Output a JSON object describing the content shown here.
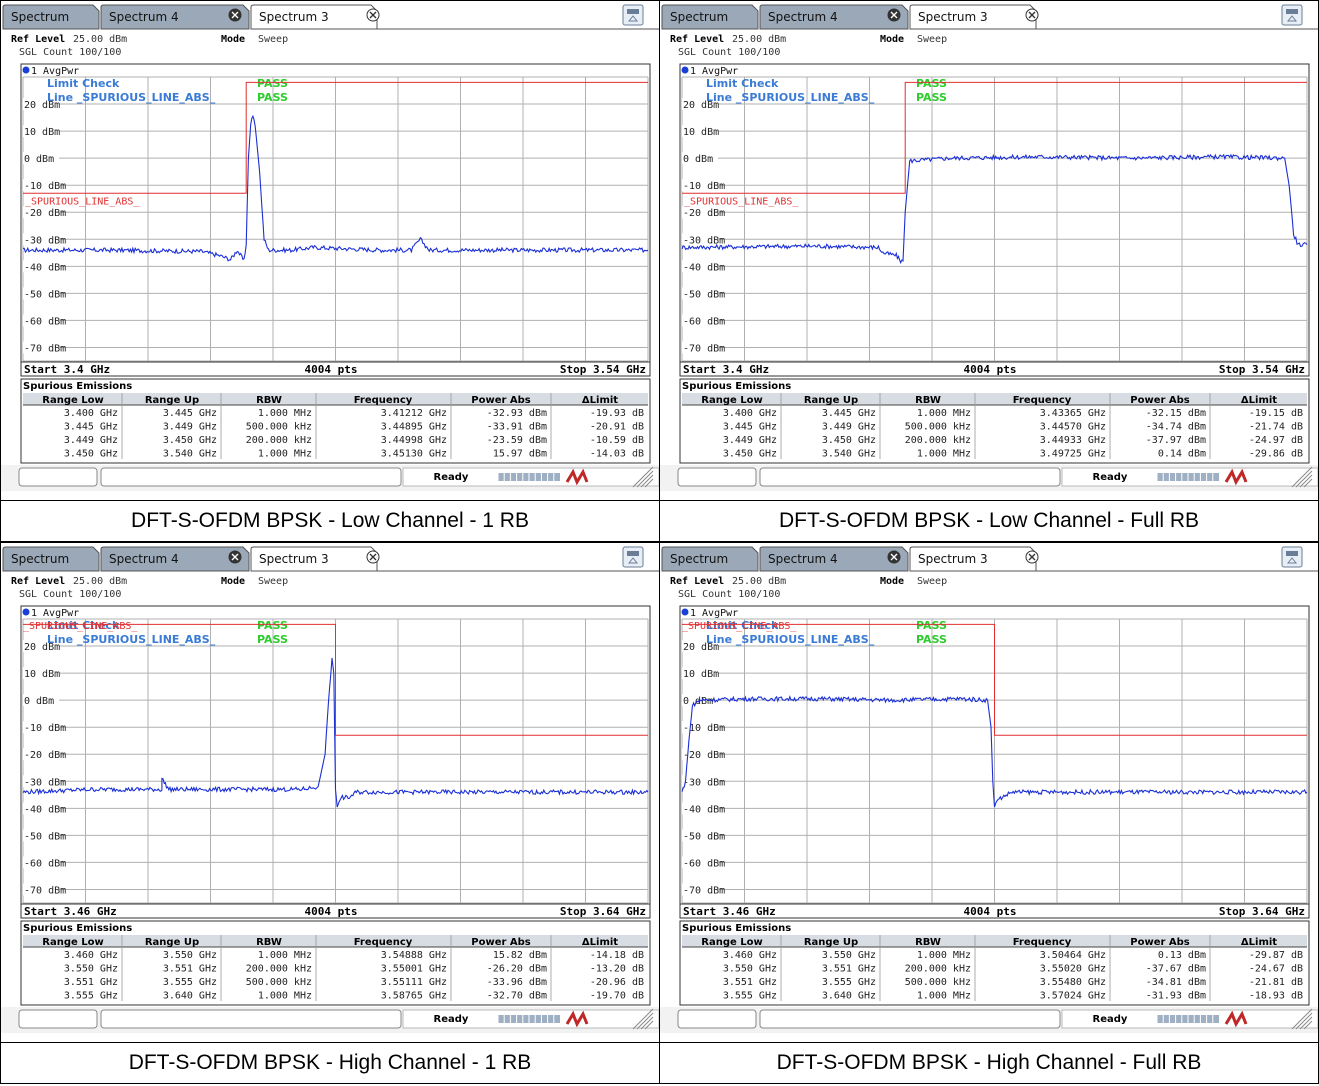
{
  "panels": [
    {
      "caption": "DFT-S-OFDM BPSK - Low Channel - 1 RB",
      "tabs": {
        "tab1": "Spectrum",
        "tab2": "Spectrum 4",
        "tab3": "Spectrum 3"
      },
      "ref_level_label": "Ref Level",
      "ref_level_value": "25.00 dBm",
      "mode_label": "Mode",
      "mode_value": "Sweep",
      "sgl_count": "SGL Count 100/100",
      "trace_label": "1 AvgPwr",
      "limit_check_label": "Limit Check",
      "limit_check_result": "PASS",
      "line_label": "Line _SPURIOUS_LINE_ABS_",
      "line_result": "PASS",
      "limit_line_name": "_SPURIOUS_LINE_ABS_",
      "start_label": "Start 3.4 GHz",
      "pts_label": "4004 pts",
      "stop_label": "Stop 3.54 GHz",
      "table_title": "Spurious Emissions",
      "table_headers": [
        "Range Low",
        "Range Up",
        "RBW",
        "Frequency",
        "Power Abs",
        "ΔLimit"
      ],
      "table_rows": [
        [
          "3.400 GHz",
          "3.445 GHz",
          "1.000 MHz",
          "3.41212 GHz",
          "-32.93 dBm",
          "-19.93 dB"
        ],
        [
          "3.445 GHz",
          "3.449 GHz",
          "500.000 kHz",
          "3.44895 GHz",
          "-33.91 dBm",
          "-20.91 dB"
        ],
        [
          "3.449 GHz",
          "3.450 GHz",
          "200.000 kHz",
          "3.44998 GHz",
          "-23.59 dBm",
          "-10.59 dB"
        ],
        [
          "3.450 GHz",
          "3.540 GHz",
          "1.000 MHz",
          "3.45130 GHz",
          "15.97 dBm",
          "-14.03 dB"
        ]
      ],
      "status_text": "Ready"
    },
    {
      "caption": "DFT-S-OFDM BPSK - Low Channel - Full RB",
      "tabs": {
        "tab1": "Spectrum",
        "tab2": "Spectrum 4",
        "tab3": "Spectrum 3"
      },
      "ref_level_label": "Ref Level",
      "ref_level_value": "25.00 dBm",
      "mode_label": "Mode",
      "mode_value": "Sweep",
      "sgl_count": "SGL Count 100/100",
      "trace_label": "1 AvgPwr",
      "limit_check_label": "Limit Check",
      "limit_check_result": "PASS",
      "line_label": "Line _SPURIOUS_LINE_ABS_",
      "line_result": "PASS",
      "limit_line_name": "_SPURIOUS_LINE_ABS_",
      "start_label": "Start 3.4 GHz",
      "pts_label": "4004 pts",
      "stop_label": "Stop 3.54 GHz",
      "table_title": "Spurious Emissions",
      "table_headers": [
        "Range Low",
        "Range Up",
        "RBW",
        "Frequency",
        "Power Abs",
        "ΔLimit"
      ],
      "table_rows": [
        [
          "3.400 GHz",
          "3.445 GHz",
          "1.000 MHz",
          "3.43365 GHz",
          "-32.15 dBm",
          "-19.15 dB"
        ],
        [
          "3.445 GHz",
          "3.449 GHz",
          "500.000 kHz",
          "3.44570 GHz",
          "-34.74 dBm",
          "-21.74 dB"
        ],
        [
          "3.449 GHz",
          "3.450 GHz",
          "200.000 kHz",
          "3.44933 GHz",
          "-37.97 dBm",
          "-24.97 dB"
        ],
        [
          "3.450 GHz",
          "3.540 GHz",
          "1.000 MHz",
          "3.49725 GHz",
          "0.14 dBm",
          "-29.86 dB"
        ]
      ],
      "status_text": "Ready"
    },
    {
      "caption": "DFT-S-OFDM BPSK - High Channel - 1 RB",
      "tabs": {
        "tab1": "Spectrum",
        "tab2": "Spectrum 4",
        "tab3": "Spectrum 3"
      },
      "ref_level_label": "Ref Level",
      "ref_level_value": "25.00 dBm",
      "mode_label": "Mode",
      "mode_value": "Sweep",
      "sgl_count": "SGL Count 100/100",
      "trace_label": "1 AvgPwr",
      "limit_check_label": "Limit Check",
      "limit_check_result": "PASS",
      "line_label": "Line _SPURIOUS_LINE_ABS_",
      "line_result": "PASS",
      "limit_line_name": "_SPURIOUS_LINE_ABS_",
      "start_label": "Start 3.46 GHz",
      "pts_label": "4004 pts",
      "stop_label": "Stop 3.64 GHz",
      "table_title": "Spurious Emissions",
      "table_headers": [
        "Range Low",
        "Range Up",
        "RBW",
        "Frequency",
        "Power Abs",
        "ΔLimit"
      ],
      "table_rows": [
        [
          "3.460 GHz",
          "3.550 GHz",
          "1.000 MHz",
          "3.54888 GHz",
          "15.82 dBm",
          "-14.18 dB"
        ],
        [
          "3.550 GHz",
          "3.551 GHz",
          "200.000 kHz",
          "3.55001 GHz",
          "-26.20 dBm",
          "-13.20 dB"
        ],
        [
          "3.551 GHz",
          "3.555 GHz",
          "500.000 kHz",
          "3.55111 GHz",
          "-33.96 dBm",
          "-20.96 dB"
        ],
        [
          "3.555 GHz",
          "3.640 GHz",
          "1.000 MHz",
          "3.58765 GHz",
          "-32.70 dBm",
          "-19.70 dB"
        ]
      ],
      "status_text": "Ready"
    },
    {
      "caption": "DFT-S-OFDM BPSK - High Channel - Full RB",
      "tabs": {
        "tab1": "Spectrum",
        "tab2": "Spectrum 4",
        "tab3": "Spectrum 3"
      },
      "ref_level_label": "Ref Level",
      "ref_level_value": "25.00 dBm",
      "mode_label": "Mode",
      "mode_value": "Sweep",
      "sgl_count": "SGL Count 100/100",
      "trace_label": "1 AvgPwr",
      "limit_check_label": "Limit Check",
      "limit_check_result": "PASS",
      "line_label": "Line _SPURIOUS_LINE_ABS_",
      "line_result": "PASS",
      "limit_line_name": "_SPURIOUS_LINE_ABS_",
      "start_label": "Start 3.46 GHz",
      "pts_label": "4004 pts",
      "stop_label": "Stop 3.64 GHz",
      "table_title": "Spurious Emissions",
      "table_headers": [
        "Range Low",
        "Range Up",
        "RBW",
        "Frequency",
        "Power Abs",
        "ΔLimit"
      ],
      "table_rows": [
        [
          "3.460 GHz",
          "3.550 GHz",
          "1.000 MHz",
          "3.50464 GHz",
          "0.13 dBm",
          "-29.87 dB"
        ],
        [
          "3.550 GHz",
          "3.551 GHz",
          "200.000 kHz",
          "3.55020 GHz",
          "-37.67 dBm",
          "-24.67 dB"
        ],
        [
          "3.551 GHz",
          "3.555 GHz",
          "500.000 kHz",
          "3.55480 GHz",
          "-34.81 dBm",
          "-21.81 dB"
        ],
        [
          "3.555 GHz",
          "3.640 GHz",
          "1.000 MHz",
          "3.57024 GHz",
          "-31.93 dBm",
          "-18.93 dB"
        ]
      ],
      "status_text": "Ready"
    }
  ],
  "colors": {
    "trace": "#1a2fd6",
    "limit_line": "#e03030",
    "limit_text": "#e03030",
    "pass": "#2ecc2e",
    "info_text": "#3a7bd5",
    "tab_bg": "#9aa8b8",
    "grid": "#b0b0b0",
    "table_header_bg": "#d8dde4",
    "status_bar_bg": "#e6e6e6"
  },
  "chart_data": [
    {
      "type": "line",
      "title": "DFT-S-OFDM BPSK - Low Channel - 1 RB",
      "x_unit": "GHz",
      "y_unit": "dBm",
      "xlim": [
        3.4,
        3.54
      ],
      "ylim": [
        -80,
        25
      ],
      "ytick_labels": [
        "20 dBm",
        "10 dBm",
        "0 dBm",
        "-10 dBm",
        "-20 dBm",
        "-30 dBm",
        "-40 dBm",
        "-50 dBm",
        "-60 dBm",
        "-70 dBm"
      ],
      "ytick_values": [
        20,
        10,
        0,
        -10,
        -20,
        -30,
        -40,
        -50,
        -60,
        -70
      ],
      "grid": true,
      "series": [
        {
          "x": [
            3.4,
            3.42,
            3.44,
            3.444,
            3.4465,
            3.448,
            3.4495,
            3.45,
            3.4505,
            3.451,
            3.4515,
            3.452,
            3.453,
            3.454,
            3.455,
            3.46,
            3.465,
            3.48,
            3.487,
            3.489,
            3.491,
            3.5,
            3.52,
            3.54
          ],
          "y": [
            -34,
            -34,
            -34.5,
            -36,
            -37.5,
            -34,
            -38,
            -32,
            0,
            13,
            16,
            12,
            -5,
            -30,
            -34,
            -34,
            -33,
            -34,
            -34,
            -30,
            -34,
            -34,
            -34,
            -34
          ]
        }
      ],
      "limit_line": {
        "x": [
          3.4,
          3.45,
          3.45,
          3.54
        ],
        "y": [
          -13,
          -13,
          30,
          30
        ]
      }
    },
    {
      "type": "line",
      "title": "DFT-S-OFDM BPSK - Low Channel - Full RB",
      "x_unit": "GHz",
      "y_unit": "dBm",
      "xlim": [
        3.4,
        3.54
      ],
      "ylim": [
        -80,
        25
      ],
      "ytick_labels": [
        "20 dBm",
        "10 dBm",
        "0 dBm",
        "-10 dBm",
        "-20 dBm",
        "-30 dBm",
        "-40 dBm",
        "-50 dBm",
        "-60 dBm",
        "-70 dBm"
      ],
      "ytick_values": [
        20,
        10,
        0,
        -10,
        -20,
        -30,
        -40,
        -50,
        -60,
        -70
      ],
      "grid": true,
      "series": [
        {
          "x": [
            3.4,
            3.43,
            3.444,
            3.445,
            3.448,
            3.449,
            3.4495,
            3.45,
            3.451,
            3.46,
            3.48,
            3.5,
            3.52,
            3.535,
            3.536,
            3.537,
            3.538,
            3.54
          ],
          "y": [
            -33,
            -32.5,
            -33,
            -35,
            -36,
            -38,
            -38,
            -20,
            -1,
            0,
            0.5,
            0,
            0.5,
            0,
            -10,
            -28,
            -32,
            -32
          ]
        }
      ],
      "limit_line": {
        "x": [
          3.4,
          3.45,
          3.45,
          3.54
        ],
        "y": [
          -13,
          -13,
          30,
          30
        ]
      }
    },
    {
      "type": "line",
      "title": "DFT-S-OFDM BPSK - High Channel - 1 RB",
      "x_unit": "GHz",
      "y_unit": "dBm",
      "xlim": [
        3.46,
        3.64
      ],
      "ylim": [
        -80,
        25
      ],
      "ytick_labels": [
        "20 dBm",
        "10 dBm",
        "0 dBm",
        "-10 dBm",
        "-20 dBm",
        "-30 dBm",
        "-40 dBm",
        "-50 dBm",
        "-60 dBm",
        "-70 dBm"
      ],
      "ytick_values": [
        20,
        10,
        0,
        -10,
        -20,
        -30,
        -40,
        -50,
        -60,
        -70
      ],
      "grid": true,
      "series": [
        {
          "x": [
            3.46,
            3.48,
            3.5,
            3.5,
            3.502,
            3.504,
            3.52,
            3.54,
            3.545,
            3.547,
            3.548,
            3.549,
            3.5495,
            3.55,
            3.5505,
            3.551,
            3.5515,
            3.552,
            3.554,
            3.556,
            3.58,
            3.6,
            3.64
          ],
          "y": [
            -34,
            -33,
            -33,
            -29,
            -33,
            -33,
            -33,
            -33,
            -32,
            -20,
            0,
            15,
            10,
            -33,
            -40,
            -37,
            -37,
            -36,
            -36,
            -34,
            -34,
            -34,
            -34
          ]
        }
      ],
      "limit_line": {
        "x": [
          3.46,
          3.55,
          3.55,
          3.64
        ],
        "y": [
          30,
          30,
          -13,
          -13
        ]
      }
    },
    {
      "type": "line",
      "title": "DFT-S-OFDM BPSK - High Channel - Full RB",
      "x_unit": "GHz",
      "y_unit": "dBm",
      "xlim": [
        3.46,
        3.64
      ],
      "ylim": [
        -80,
        25
      ],
      "ytick_labels": [
        "20 dBm",
        "10 dBm",
        "0 dBm",
        "-10 dBm",
        "-20 dBm",
        "-30 dBm",
        "-40 dBm",
        "-50 dBm",
        "-60 dBm",
        "-70 dBm"
      ],
      "ytick_values": [
        20,
        10,
        0,
        -10,
        -20,
        -30,
        -40,
        -50,
        -60,
        -70
      ],
      "grid": true,
      "series": [
        {
          "x": [
            3.46,
            3.461,
            3.462,
            3.463,
            3.465,
            3.48,
            3.5,
            3.52,
            3.54,
            3.548,
            3.549,
            3.5495,
            3.55,
            3.5505,
            3.551,
            3.552,
            3.555,
            3.56,
            3.58,
            3.6,
            3.64
          ],
          "y": [
            -34,
            -30,
            -15,
            -2,
            0,
            0.5,
            0.5,
            0,
            0.5,
            0,
            -10,
            -30,
            -40,
            -37,
            -37,
            -36,
            -34,
            -34,
            -34,
            -34,
            -34
          ]
        }
      ],
      "limit_line": {
        "x": [
          3.46,
          3.55,
          3.55,
          3.64
        ],
        "y": [
          30,
          30,
          -13,
          -13
        ]
      }
    }
  ]
}
